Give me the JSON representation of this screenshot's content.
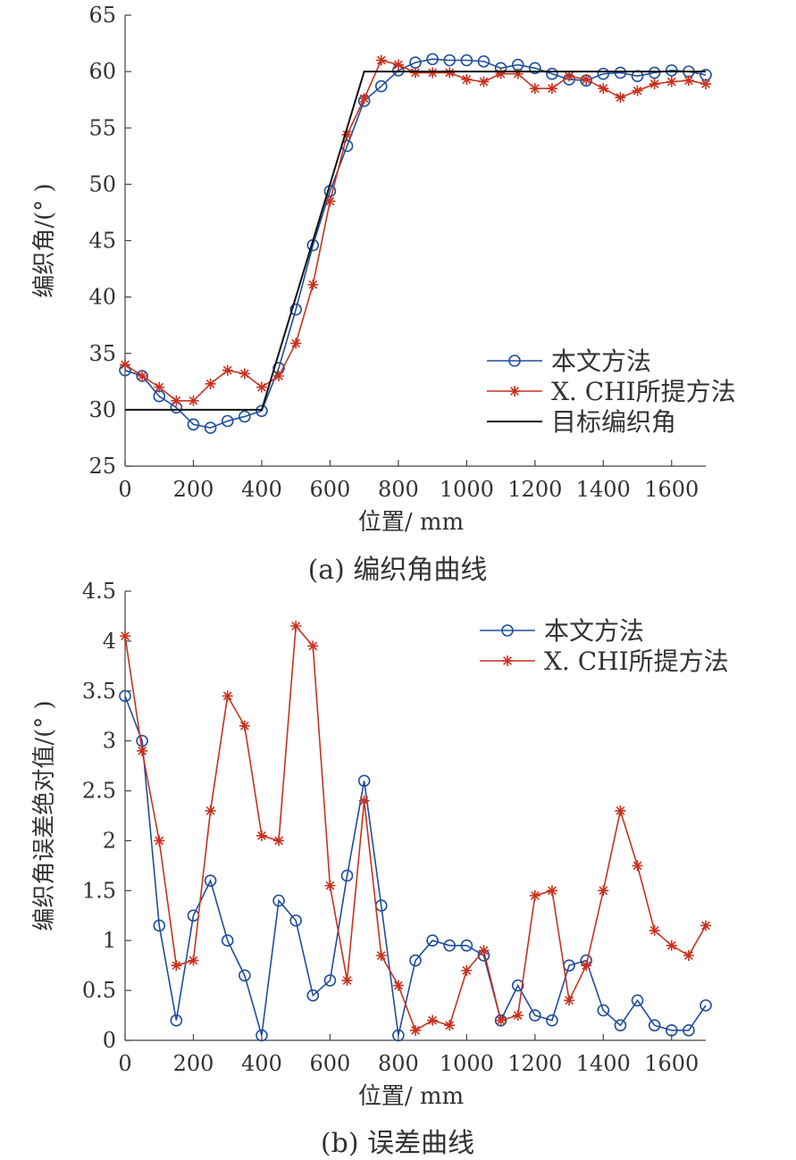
{
  "chart_data": [
    {
      "type": "line",
      "caption": "(a)  编织角曲线",
      "xlabel": "位置/ mm",
      "ylabel": "编织角/(°  )",
      "xlim": [
        0,
        1700
      ],
      "ylim": [
        25,
        65
      ],
      "xticks": [
        0,
        200,
        400,
        600,
        800,
        1000,
        1200,
        1400,
        1600
      ],
      "yticks": [
        25,
        30,
        35,
        40,
        45,
        50,
        55,
        60,
        65
      ],
      "xtick_labels": [
        "0",
        "200",
        "400",
        "600",
        "800",
        "1000",
        "1200",
        "1400",
        "1600"
      ],
      "ytick_labels": [
        "25",
        "30",
        "35",
        "40",
        "45",
        "50",
        "55",
        "60",
        "65"
      ],
      "legend_position": "bottom-right",
      "series": [
        {
          "name": "本文方法",
          "color": "#1f4e9c",
          "marker": "circle",
          "x": [
            0,
            50,
            100,
            150,
            200,
            250,
            300,
            350,
            400,
            450,
            500,
            550,
            600,
            650,
            700,
            750,
            800,
            850,
            900,
            950,
            1000,
            1050,
            1100,
            1150,
            1200,
            1250,
            1300,
            1350,
            1400,
            1450,
            1500,
            1550,
            1600,
            1650,
            1700
          ],
          "y": [
            33.5,
            33.0,
            31.2,
            30.2,
            28.7,
            28.4,
            29.0,
            29.4,
            29.9,
            33.7,
            38.9,
            44.6,
            49.4,
            53.4,
            57.4,
            58.7,
            60.1,
            60.8,
            61.1,
            61.0,
            61.0,
            60.9,
            60.3,
            60.6,
            60.3,
            59.8,
            59.3,
            59.2,
            59.8,
            59.9,
            59.6,
            59.9,
            60.1,
            60.0,
            59.7
          ]
        },
        {
          "name": "X. CHI所提方法",
          "color": "#c8321e",
          "marker": "star",
          "x": [
            0,
            50,
            100,
            150,
            200,
            250,
            300,
            350,
            400,
            450,
            500,
            550,
            600,
            650,
            700,
            750,
            800,
            850,
            900,
            950,
            1000,
            1050,
            1100,
            1150,
            1200,
            1250,
            1300,
            1350,
            1400,
            1450,
            1500,
            1550,
            1600,
            1650,
            1700
          ],
          "y": [
            34.0,
            33.0,
            32.0,
            30.8,
            30.8,
            32.3,
            33.5,
            33.2,
            32.0,
            33.0,
            35.9,
            41.1,
            48.5,
            54.4,
            57.6,
            61.0,
            60.6,
            59.9,
            59.9,
            59.9,
            59.3,
            59.1,
            59.8,
            59.8,
            58.5,
            58.5,
            59.6,
            59.3,
            58.5,
            57.7,
            58.3,
            58.9,
            59.1,
            59.2,
            58.9
          ]
        },
        {
          "name": "目标编织角",
          "color": "#111111",
          "marker": "none",
          "x": [
            0,
            400,
            700,
            1700
          ],
          "y": [
            30,
            30,
            60,
            60
          ]
        }
      ]
    },
    {
      "type": "line",
      "caption": "(b)  误差曲线",
      "xlabel": "位置/ mm",
      "ylabel": "编织角误差绝对值/(°  )",
      "xlim": [
        0,
        1700
      ],
      "ylim": [
        0,
        4.5
      ],
      "xticks": [
        0,
        200,
        400,
        600,
        800,
        1000,
        1200,
        1400,
        1600
      ],
      "yticks": [
        0,
        0.5,
        1,
        1.5,
        2,
        2.5,
        3,
        3.5,
        4,
        4.5
      ],
      "xtick_labels": [
        "0",
        "200",
        "400",
        "600",
        "800",
        "1000",
        "1200",
        "1400",
        "1600"
      ],
      "ytick_labels": [
        "0",
        "0.5",
        "1",
        "1.5",
        "2",
        "2.5",
        "3",
        "3.5",
        "4",
        "4.5"
      ],
      "legend_position": "top-right",
      "series": [
        {
          "name": "本文方法",
          "color": "#1f4e9c",
          "marker": "circle",
          "x": [
            0,
            50,
            100,
            150,
            200,
            250,
            300,
            350,
            400,
            450,
            500,
            550,
            600,
            650,
            700,
            750,
            800,
            850,
            900,
            950,
            1000,
            1050,
            1100,
            1150,
            1200,
            1250,
            1300,
            1350,
            1400,
            1450,
            1500,
            1550,
            1600,
            1650,
            1700
          ],
          "y": [
            3.45,
            3.0,
            1.15,
            0.2,
            1.25,
            1.6,
            1.0,
            0.65,
            0.05,
            1.4,
            1.2,
            0.45,
            0.6,
            1.65,
            2.6,
            1.35,
            0.05,
            0.8,
            1.0,
            0.95,
            0.95,
            0.85,
            0.2,
            0.55,
            0.25,
            0.2,
            0.75,
            0.8,
            0.3,
            0.15,
            0.4,
            0.15,
            0.1,
            0.1,
            0.35
          ]
        },
        {
          "name": "X. CHI所提方法",
          "color": "#c8321e",
          "marker": "star",
          "x": [
            0,
            50,
            100,
            150,
            200,
            250,
            300,
            350,
            400,
            450,
            500,
            550,
            600,
            650,
            700,
            750,
            800,
            850,
            900,
            950,
            1000,
            1050,
            1100,
            1150,
            1200,
            1250,
            1300,
            1350,
            1400,
            1450,
            1500,
            1550,
            1600,
            1650,
            1700
          ],
          "y": [
            4.05,
            2.9,
            2.0,
            0.75,
            0.8,
            2.3,
            3.45,
            3.15,
            2.05,
            2.0,
            4.15,
            3.95,
            1.55,
            0.6,
            2.4,
            0.85,
            0.55,
            0.1,
            0.2,
            0.15,
            0.7,
            0.9,
            0.2,
            0.25,
            1.45,
            1.5,
            0.4,
            0.75,
            1.5,
            2.3,
            1.75,
            1.1,
            0.95,
            0.85,
            1.15
          ]
        }
      ]
    }
  ]
}
